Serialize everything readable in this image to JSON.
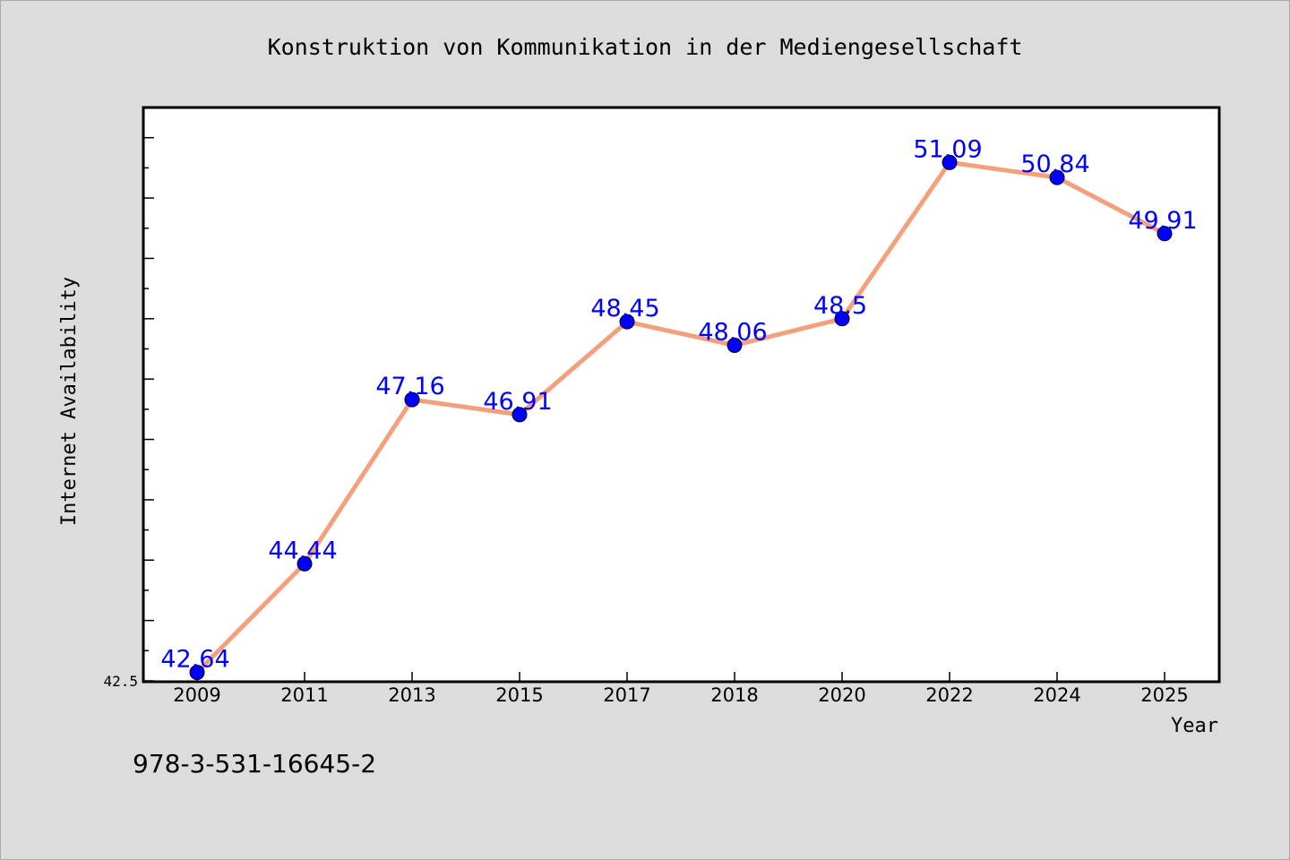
{
  "chart_data": {
    "type": "line",
    "title": "Konstruktion von Kommunikation in der Mediengesellschaft",
    "xlabel": "Year",
    "ylabel": "Internet Availability",
    "categories": [
      "2009",
      "2011",
      "2013",
      "2015",
      "2017",
      "2018",
      "2020",
      "2022",
      "2024",
      "2025"
    ],
    "series": [
      {
        "values": [
          42.64,
          44.44,
          47.16,
          46.91,
          48.45,
          48.06,
          48.5,
          51.09,
          50.84,
          49.91
        ],
        "labels": [
          "42.64",
          "44.44",
          "47.16",
          "46.91",
          "48.45",
          "48.06",
          "48.5",
          "51.09",
          "50.84",
          "49.91"
        ]
      }
    ],
    "ylim": [
      42.5,
      52
    ],
    "y_tick_label": "42.5",
    "grid": false,
    "legend": "none",
    "colors": {
      "line": "#f4a07c",
      "marker": "#0000ff",
      "label": "#0000ff",
      "background": "#dcdcdc",
      "plot_background": "#ffffff"
    }
  },
  "footer_text": "978-3-531-16645-2"
}
